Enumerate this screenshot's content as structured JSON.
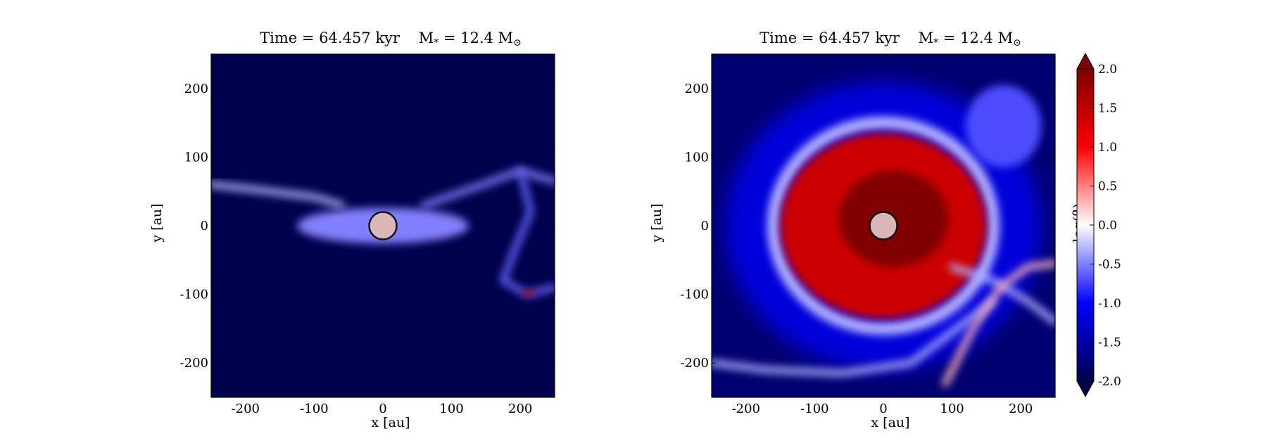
{
  "panels": [
    {
      "title": {
        "time": "Time = 64.457 kyr",
        "mass_prefix": "M",
        "mass_sub": "*",
        "mass_value": "= 12.4 M",
        "mass_sun": "⊙"
      },
      "xlabel": "x [au]",
      "ylabel": "y [au]"
    },
    {
      "title": {
        "time": "Time = 64.457 kyr",
        "mass_prefix": "M",
        "mass_sub": "*",
        "mass_value": "= 12.4 M",
        "mass_sun": "⊙"
      },
      "xlabel": "x [au]",
      "ylabel": "y [au]"
    }
  ],
  "colorbar": {
    "label": "log(β)",
    "ticks": [
      "2.0",
      "1.5",
      "1.0",
      "0.5",
      "0.0",
      "-0.5",
      "-1.0",
      "-1.5",
      "-2.0"
    ],
    "range": [
      -2.0,
      2.0
    ],
    "colormap": "seismic",
    "colors": {
      "low": "#00004c",
      "mid": "#ffffff",
      "high": "#800000"
    }
  },
  "chart_data": [
    {
      "type": "heatmap",
      "title": "Time = 64.457 kyr   M* = 12.4 M⊙",
      "xlabel": "x [au]",
      "ylabel": "y [au]",
      "xlim": [
        -250,
        250
      ],
      "ylim": [
        -250,
        250
      ],
      "xticks": [
        -200,
        -100,
        0,
        100,
        200
      ],
      "yticks": [
        -200,
        -100,
        0,
        100,
        200
      ],
      "xtick_labels": [
        "-200",
        "-100",
        "0",
        "100",
        "200"
      ],
      "ytick_labels": [
        "-200",
        "-100",
        "0",
        "100",
        "200"
      ],
      "colorbar_range": [
        -2.0,
        2.0
      ],
      "colormap": "seismic",
      "features": [
        {
          "kind": "background",
          "value": -2.0
        },
        {
          "kind": "disk",
          "cx": 0,
          "cy": 0,
          "rx": 115,
          "ry": 14,
          "value": 2.0
        },
        {
          "kind": "disk",
          "cx": 0,
          "cy": 0,
          "rx": 125,
          "ry": 26,
          "value": -0.5
        },
        {
          "kind": "filament",
          "points": [
            [
              -250,
              60
            ],
            [
              -180,
              52
            ],
            [
              -100,
              42
            ],
            [
              -60,
              30
            ]
          ],
          "value": -0.3
        },
        {
          "kind": "filament",
          "points": [
            [
              60,
              30
            ],
            [
              140,
              58
            ],
            [
              200,
              80
            ],
            [
              250,
              65
            ]
          ],
          "value": -0.5
        },
        {
          "kind": "filament",
          "points": [
            [
              200,
              80
            ],
            [
              215,
              20
            ],
            [
              190,
              -40
            ],
            [
              175,
              -80
            ],
            [
              210,
              -100
            ],
            [
              250,
              -90
            ]
          ],
          "value": -0.6
        },
        {
          "kind": "blob",
          "cx": 212,
          "cy": -98,
          "rx": 10,
          "ry": 5,
          "value": 1.8
        },
        {
          "kind": "star",
          "cx": 0,
          "cy": 0,
          "r": 20
        }
      ]
    },
    {
      "type": "heatmap",
      "title": "Time = 64.457 kyr   M* = 12.4 M⊙",
      "xlabel": "x [au]",
      "ylabel": "y [au]",
      "xlim": [
        -250,
        250
      ],
      "ylim": [
        -250,
        250
      ],
      "xticks": [
        -200,
        -100,
        0,
        100,
        200
      ],
      "yticks": [
        -200,
        -100,
        0,
        100,
        200
      ],
      "xtick_labels": [
        "-200",
        "-100",
        "0",
        "100",
        "200"
      ],
      "ytick_labels": [
        "-200",
        "-100",
        "0",
        "100",
        "200"
      ],
      "colorbar_range": [
        -2.0,
        2.0
      ],
      "colormap": "seismic",
      "features": [
        {
          "kind": "background",
          "value": -1.8
        },
        {
          "kind": "halo",
          "cx": 0,
          "cy": 0,
          "rx": 230,
          "ry": 210,
          "value": -1.2
        },
        {
          "kind": "ring",
          "cx": 0,
          "cy": 0,
          "rx": 160,
          "ry": 150,
          "value": -0.3
        },
        {
          "kind": "disk",
          "cx": 0,
          "cy": 0,
          "rx": 150,
          "ry": 135,
          "value": 1.4
        },
        {
          "kind": "disk",
          "cx": 15,
          "cy": 10,
          "rx": 80,
          "ry": 70,
          "value": 2.0
        },
        {
          "kind": "patch",
          "cx": 175,
          "cy": 145,
          "rx": 55,
          "ry": 60,
          "value": -0.7
        },
        {
          "kind": "filament",
          "points": [
            [
              -250,
              -200
            ],
            [
              -170,
              -210
            ],
            [
              -60,
              -215
            ],
            [
              40,
              -200
            ],
            [
              120,
              -140
            ],
            [
              160,
              -110
            ]
          ],
          "value": -0.3
        },
        {
          "kind": "filament",
          "points": [
            [
              100,
              -60
            ],
            [
              160,
              -80
            ],
            [
              210,
              -110
            ],
            [
              250,
              -140
            ]
          ],
          "value": -0.3
        },
        {
          "kind": "filament",
          "points": [
            [
              90,
              -230
            ],
            [
              130,
              -150
            ],
            [
              170,
              -90
            ],
            [
              210,
              -60
            ],
            [
              250,
              -55
            ]
          ],
          "value": 0.3
        },
        {
          "kind": "star",
          "cx": 0,
          "cy": 0,
          "r": 20
        }
      ]
    }
  ]
}
